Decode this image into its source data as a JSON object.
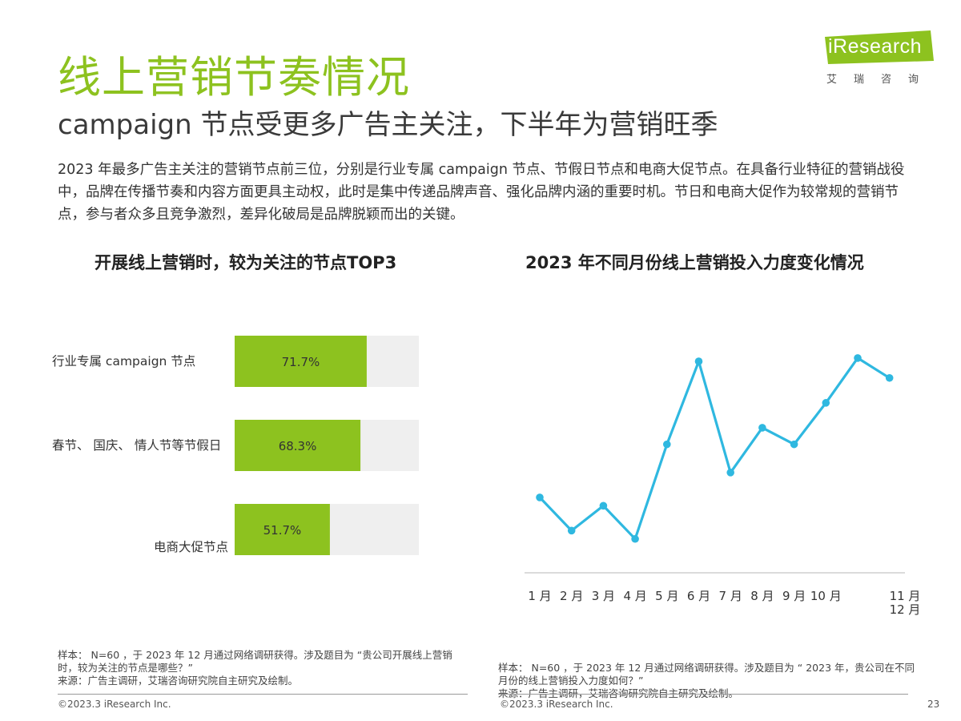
{
  "header": {
    "title": "线上营销节奏情况",
    "subtitle": "campaign 节点受更多广告主关注，下半年为营销旺季"
  },
  "logo": {
    "word": "iResearch",
    "cn": "艾瑞咨询",
    "color": "#8dc21f"
  },
  "intro": "2023 年最多广告主关注的营销节点前三位，分别是行业专属 campaign 节点、节假日节点和电商大促节点。在具备行业特征的营销战役中，品牌在传播节奏和内容方面更具主动权，此时是集中传递品牌声音、强化品牌内涵的重要时机。节日和电商大促作为较常规的营销节点，参与者众多且竞争激烈，差异化破局是品牌脱颖而出的关键。",
  "colors": {
    "accent": "#8dc21f",
    "bar_bg": "#efefef",
    "line": "#2fb8e0"
  },
  "chart_data": [
    {
      "type": "bar",
      "title": "开展线上营销时，较为关注的节点TOP3",
      "orientation": "horizontal",
      "categories": [
        "行业专属 campaign 节点",
        "春节、 国庆、 情人节等节假日",
        "电商大促节点"
      ],
      "values": [
        71.7,
        68.3,
        51.7
      ],
      "labels": [
        "71.7%",
        "68.3%",
        "51.7%"
      ],
      "xlim": [
        0,
        100
      ],
      "grid": false,
      "legend": "none"
    },
    {
      "type": "line",
      "title": "2023 年不同月份线上营销投入力度变化情况",
      "categories": [
        "1 月",
        "2 月",
        "3 月",
        "4 月",
        "5 月",
        "6 月",
        "7 月",
        "8 月",
        "9 月",
        "10 月",
        "11 月",
        "12 月"
      ],
      "values": [
        4.3,
        2.3,
        3.8,
        1.8,
        7.5,
        12.5,
        5.8,
        8.5,
        7.5,
        10.0,
        12.7,
        11.5
      ],
      "ylim": [
        0,
        14
      ],
      "y_axis_labels": false,
      "grid": false,
      "legend": "none"
    }
  ],
  "notes": {
    "left_sample": "样本： N=60 ，于 2023 年 12 月通过网络调研获得。涉及题目为 “贵公司开展线上营销时，较为关注的节点是哪些？”",
    "left_source": "来源：广告主调研，艾瑞咨询研究院自主研究及绘制。",
    "right_sample": "样本： N=60 ，于 2023 年 12 月通过网络调研获得。涉及题目为 “ 2023 年，贵公司在不同月份的线上营销投入力度如何？”",
    "right_source": "来源：广告主调研，艾瑞咨询研究院自主研究及绘制。"
  },
  "footer": {
    "copyright": "©2023.3 iResearch Inc.",
    "page": "23"
  }
}
